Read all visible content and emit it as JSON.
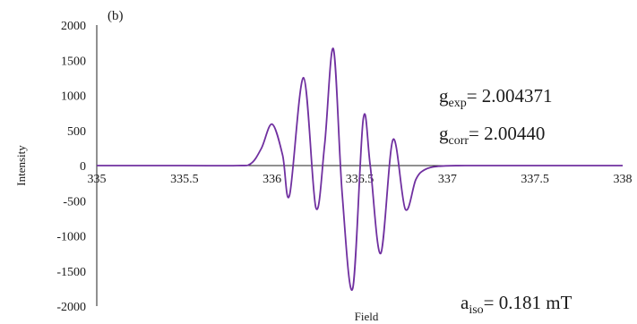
{
  "chart_data": {
    "type": "line",
    "panel_label": "(b)",
    "title": "",
    "xlabel": "Field",
    "ylabel": "Intensity",
    "xlim": [
      335,
      338
    ],
    "ylim": [
      -2000,
      2000
    ],
    "x_ticks": [
      335,
      335.5,
      336,
      336.5,
      337,
      337.5,
      338
    ],
    "x_tick_labels": [
      "335",
      "335.5",
      "336",
      "336.5",
      "337",
      "337.5",
      "338"
    ],
    "y_ticks": [
      2000,
      1500,
      1000,
      500,
      0,
      -500,
      -1000,
      -1500,
      -2000
    ],
    "y_tick_labels": [
      "2000",
      "1500",
      "1000",
      "500",
      "0",
      "-500",
      "-1000",
      "-1500",
      "-2000"
    ],
    "grid": false,
    "legend": "none",
    "series": [
      {
        "color": "#7030a0",
        "x": [
          335.0,
          335.5,
          335.8,
          335.88,
          335.94,
          336.0,
          336.06,
          336.1,
          336.18,
          336.25,
          336.3,
          336.35,
          336.4,
          336.46,
          336.52,
          336.56,
          336.62,
          336.69,
          336.76,
          336.82,
          336.87,
          336.95,
          337.1,
          337.5,
          338.0
        ],
        "values": [
          0,
          0,
          0,
          30,
          250,
          590,
          150,
          -420,
          1250,
          -600,
          300,
          1660,
          -400,
          -1750,
          660,
          0,
          -1250,
          370,
          -620,
          -200,
          -60,
          -10,
          0,
          0,
          0
        ]
      }
    ]
  },
  "annotations": {
    "g_exp": {
      "symbol": "g",
      "subscript": "exp",
      "value": "= 2.004371"
    },
    "g_corr": {
      "symbol": "g",
      "subscript": "corr",
      "value": "= 2.00440"
    },
    "a_iso": {
      "symbol": "a",
      "subscript": "iso",
      "value": "= 0.181 mT"
    }
  }
}
